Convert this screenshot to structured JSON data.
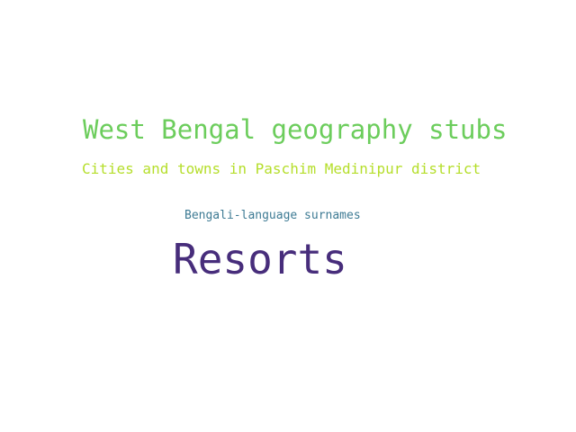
{
  "words": [
    {
      "text": "West Bengal geography stubs",
      "color": "#6ccd5c"
    },
    {
      "text": "Cities and towns in Paschim Medinipur district",
      "color": "#b5de2b"
    },
    {
      "text": "Bengali-language surnames",
      "color": "#3e7b94"
    },
    {
      "text": "Resorts",
      "color": "#472d7b"
    }
  ]
}
